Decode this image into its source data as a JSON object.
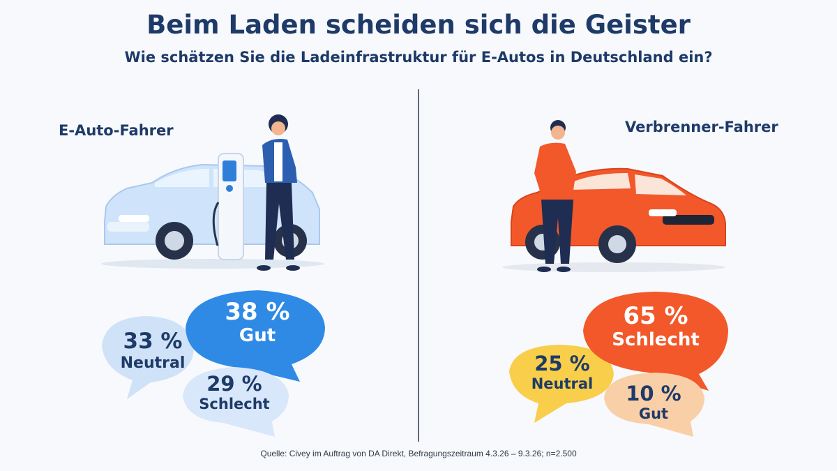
{
  "title": "Beim Laden scheiden sich die Geister",
  "subtitle": "Wie schätzen Sie die Ladeinfrastruktur für E-Autos in Deutschland ein?",
  "source": "Quelle: Civey im Auftrag von DA Direkt, Befragungszeitraum 4.3.26 – 9.3.26; n=2.500",
  "chart_data": [
    {
      "type": "bubble",
      "group": "E-Auto-Fahrer",
      "categories": [
        "Neutral",
        "Gut",
        "Schlecht"
      ],
      "values": [
        33,
        38,
        29
      ],
      "unit": "%",
      "labels": [
        "33 %",
        "38 %",
        "29 %"
      ],
      "colors": [
        "#cfe2f7",
        "#2f8ae6",
        "#d8e8fa"
      ],
      "text_colors": [
        "#1e3a68",
        "#ffffff",
        "#1e3a68"
      ]
    },
    {
      "type": "bubble",
      "group": "Verbrenner-Fahrer",
      "categories": [
        "Neutral",
        "Schlecht",
        "Gut"
      ],
      "values": [
        25,
        65,
        10
      ],
      "unit": "%",
      "labels": [
        "25 %",
        "65 %",
        "10 %"
      ],
      "colors": [
        "#f8ce4a",
        "#f2582a",
        "#f9cfa8"
      ],
      "text_colors": [
        "#1e3a68",
        "#ffffff",
        "#1e3a68"
      ]
    }
  ],
  "colors": {
    "title": "#1e3a68",
    "ev_car": "#cfe3fb",
    "combustion_car": "#f2582a"
  }
}
